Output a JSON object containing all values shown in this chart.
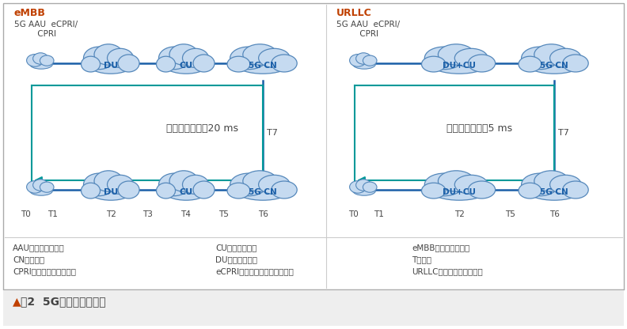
{
  "title": "图2  5G时延对比示意图",
  "embb_label": "eMBB",
  "urllc_label": "URLLC",
  "embb_delay_text": "典型时延需求：20 ms",
  "urllc_delay_text": "典型时延需求：5 ms",
  "t7_label": "T7",
  "legend_col1": [
    "AAU：动态天线单元",
    "CN：核心网",
    "CPRI：通用公共无线接口"
  ],
  "legend_col2": [
    "CU：集中式单元",
    "DU：分布式单元",
    "eCPRI：增强通用公共无线接口"
  ],
  "legend_col3": [
    "eMBB：增强移动宽带",
    "T：时延",
    "URLLC：超可靠低时延通信"
  ],
  "border_color": "#aaaaaa",
  "blue_line_color": "#1a5fa8",
  "teal_rect_color": "#009999",
  "cloud_fill": "#c5daf0",
  "cloud_edge": "#5588bb",
  "text_color_dark": "#444444",
  "text_color_orange": "#c04000",
  "bg_color": "#ffffff",
  "bottom_bg": "#eeeeee",
  "header_text": "5G AAU  eCPRI/\n         CPRI"
}
